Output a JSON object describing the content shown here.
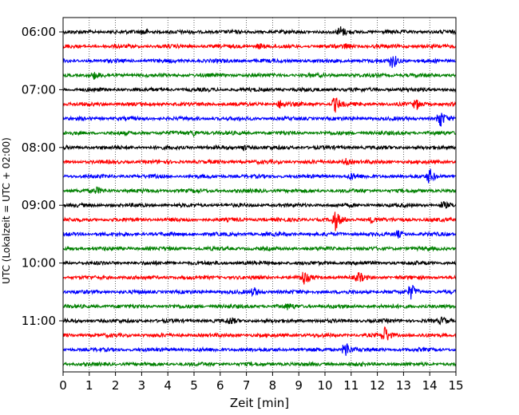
{
  "chart_data": {
    "type": "line",
    "title": "",
    "xlabel": "Zeit  [min]",
    "ylabel": "UTC (Lokalzeit = UTC + 02:00)",
    "xlim": [
      0,
      15
    ],
    "x_ticks": [
      0,
      1,
      2,
      3,
      4,
      5,
      6,
      7,
      8,
      9,
      10,
      11,
      12,
      13,
      14,
      15
    ],
    "y_tick_labels": [
      "06:00",
      "07:00",
      "08:00",
      "09:00",
      "10:00",
      "11:00"
    ],
    "row_interval_min": 15,
    "rows_per_hour": 4,
    "grid": "vertical-dotted",
    "row_colors": [
      "#000000",
      "#ff0000",
      "#0000ff",
      "#008000"
    ],
    "traces": [
      {
        "start": "06:00",
        "color": "#000000",
        "events": [
          [
            3.1,
            0.6
          ],
          [
            10.6,
            1.0
          ]
        ]
      },
      {
        "start": "06:15",
        "color": "#ff0000",
        "events": [
          [
            7.5,
            0.5
          ],
          [
            10.8,
            0.5
          ]
        ]
      },
      {
        "start": "06:30",
        "color": "#0000ff",
        "events": [
          [
            12.6,
            1.6
          ]
        ]
      },
      {
        "start": "06:45",
        "color": "#008000",
        "events": [
          [
            1.2,
            0.6
          ]
        ]
      },
      {
        "start": "07:00",
        "color": "#000000",
        "events": []
      },
      {
        "start": "07:15",
        "color": "#ff0000",
        "events": [
          [
            8.3,
            0.8
          ],
          [
            10.4,
            1.6
          ],
          [
            13.5,
            1.0
          ]
        ]
      },
      {
        "start": "07:30",
        "color": "#0000ff",
        "events": [
          [
            14.4,
            1.8
          ]
        ]
      },
      {
        "start": "07:45",
        "color": "#008000",
        "events": [
          [
            5.0,
            0.5
          ]
        ]
      },
      {
        "start": "08:00",
        "color": "#000000",
        "events": [
          [
            6.9,
            0.5
          ]
        ]
      },
      {
        "start": "08:15",
        "color": "#ff0000",
        "events": [
          [
            10.8,
            0.6
          ]
        ]
      },
      {
        "start": "08:30",
        "color": "#0000ff",
        "events": [
          [
            11.0,
            0.6
          ],
          [
            14.0,
            1.6
          ]
        ]
      },
      {
        "start": "08:45",
        "color": "#008000",
        "events": [
          [
            1.3,
            0.6
          ]
        ]
      },
      {
        "start": "09:00",
        "color": "#000000",
        "events": [
          [
            14.5,
            0.6
          ]
        ]
      },
      {
        "start": "09:15",
        "color": "#ff0000",
        "events": [
          [
            10.4,
            2.0
          ],
          [
            11.8,
            0.6
          ]
        ]
      },
      {
        "start": "09:30",
        "color": "#0000ff",
        "events": [
          [
            12.8,
            0.6
          ]
        ]
      },
      {
        "start": "09:45",
        "color": "#008000",
        "events": []
      },
      {
        "start": "10:00",
        "color": "#000000",
        "events": []
      },
      {
        "start": "10:15",
        "color": "#ff0000",
        "events": [
          [
            9.2,
            1.4
          ],
          [
            11.3,
            1.0
          ]
        ]
      },
      {
        "start": "10:30",
        "color": "#0000ff",
        "events": [
          [
            7.3,
            0.8
          ],
          [
            13.3,
            1.6
          ]
        ]
      },
      {
        "start": "10:45",
        "color": "#008000",
        "events": [
          [
            8.6,
            0.5
          ]
        ]
      },
      {
        "start": "11:00",
        "color": "#000000",
        "events": [
          [
            6.4,
            0.6
          ],
          [
            14.5,
            0.6
          ]
        ]
      },
      {
        "start": "11:15",
        "color": "#ff0000",
        "events": [
          [
            12.3,
            1.8
          ]
        ]
      },
      {
        "start": "11:30",
        "color": "#0000ff",
        "events": [
          [
            10.8,
            1.8
          ]
        ]
      },
      {
        "start": "11:45",
        "color": "#008000",
        "events": []
      }
    ]
  }
}
